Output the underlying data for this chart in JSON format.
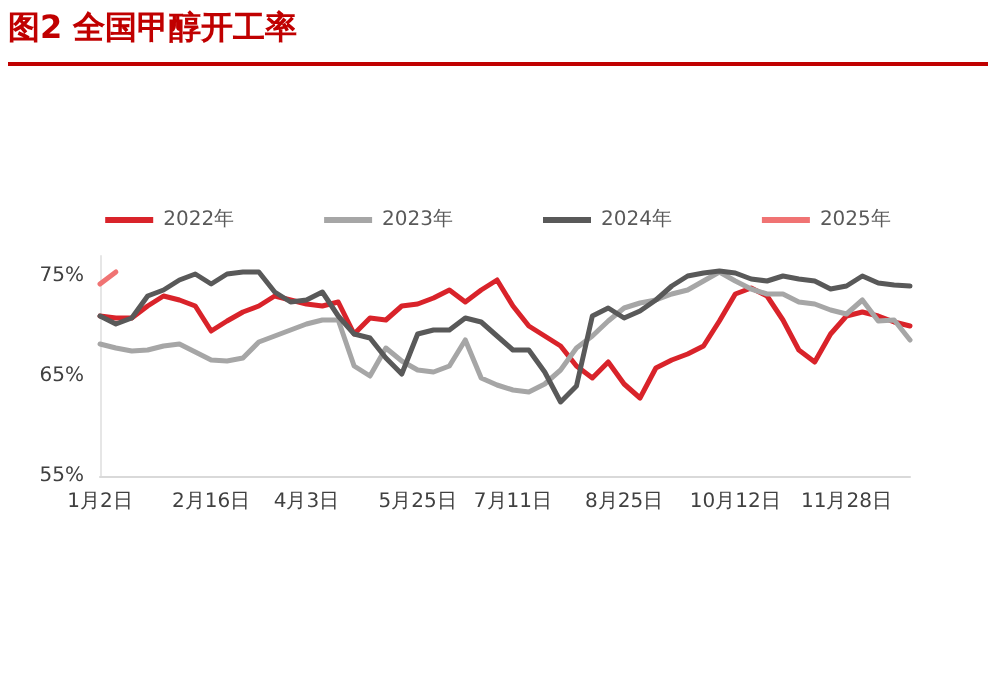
{
  "chart_data": {
    "type": "line",
    "title": "图2  全国甲醇开工率",
    "categories": [
      "1月2日",
      null,
      null,
      null,
      null,
      null,
      null,
      "2月16日",
      null,
      null,
      null,
      null,
      null,
      "4月3日",
      null,
      null,
      null,
      null,
      null,
      null,
      "5月25日",
      null,
      null,
      null,
      null,
      null,
      "7月11日",
      null,
      null,
      null,
      null,
      null,
      null,
      "8月25日",
      null,
      null,
      null,
      null,
      null,
      null,
      "10月12日",
      null,
      null,
      null,
      null,
      null,
      null,
      "11月28日",
      null,
      null,
      null,
      null
    ],
    "series": [
      {
        "name": "2022年",
        "color": "#d9232a",
        "values": [
          71,
          70.8,
          70.8,
          72,
          73,
          72.6,
          72,
          69.5,
          70.5,
          71.4,
          72,
          73,
          72.6,
          72.2,
          72,
          72.4,
          69.2,
          70.8,
          70.6,
          72,
          72.2,
          72.8,
          73.6,
          72.4,
          73.6,
          74.6,
          72,
          70,
          69,
          68,
          66,
          64.8,
          66.4,
          64.2,
          62.8,
          65.8,
          66.6,
          67.2,
          68,
          70.5,
          73.2,
          73.8,
          73,
          70.6,
          67.6,
          66.4,
          69.2,
          71,
          71.4,
          71,
          70.4,
          70
        ]
      },
      {
        "name": "2023年",
        "color": "#a6a6a6",
        "values": [
          68.2,
          67.8,
          67.5,
          67.6,
          68,
          68.2,
          67.4,
          66.6,
          66.5,
          66.8,
          68.4,
          69,
          69.6,
          70.2,
          70.6,
          70.6,
          66,
          65,
          67.8,
          66.5,
          65.6,
          65.4,
          66,
          68.6,
          64.8,
          64.1,
          63.6,
          63.4,
          64.2,
          65.6,
          67.8,
          69,
          70.5,
          71.8,
          72.3,
          72.6,
          73.2,
          73.6,
          74.5,
          75.4,
          74.5,
          73.7,
          73.2,
          73.2,
          72.4,
          72.2,
          71.6,
          71.2,
          72.6,
          70.5,
          70.6,
          68.6
        ]
      },
      {
        "name": "2024年",
        "color": "#595959",
        "values": [
          71,
          70.2,
          70.8,
          73,
          73.6,
          74.6,
          75.2,
          74.2,
          75.2,
          75.4,
          75.4,
          73.4,
          72.4,
          72.6,
          73.4,
          71,
          69.2,
          68.8,
          66.8,
          65.2,
          69.2,
          69.6,
          69.6,
          70.8,
          70.4,
          69,
          67.6,
          67.6,
          65.4,
          62.4,
          64,
          71,
          71.8,
          70.8,
          71.5,
          72.6,
          74,
          75,
          75.3,
          75.5,
          75.3,
          74.7,
          74.5,
          75,
          74.7,
          74.5,
          73.7,
          74,
          75,
          74.3,
          74.1,
          74
        ]
      },
      {
        "name": "2025年",
        "color": "#f07373",
        "values": [
          74.2,
          75.4,
          null,
          null,
          null,
          null,
          null,
          null,
          null,
          null,
          null,
          null,
          null,
          null,
          null,
          null,
          null,
          null,
          null,
          null,
          null,
          null,
          null,
          null,
          null,
          null,
          null,
          null,
          null,
          null,
          null,
          null,
          null,
          null,
          null,
          null,
          null,
          null,
          null,
          null,
          null,
          null,
          null,
          null,
          null,
          null,
          null,
          null,
          null,
          null,
          null,
          null
        ]
      }
    ],
    "ylim": [
      55,
      77
    ],
    "yticks": [
      {
        "value": 55,
        "label": "55%"
      },
      {
        "value": 65,
        "label": "65%"
      },
      {
        "value": 75,
        "label": "75%"
      }
    ],
    "grid": false,
    "legend": "top",
    "marker": "none",
    "line_style": "solid"
  }
}
